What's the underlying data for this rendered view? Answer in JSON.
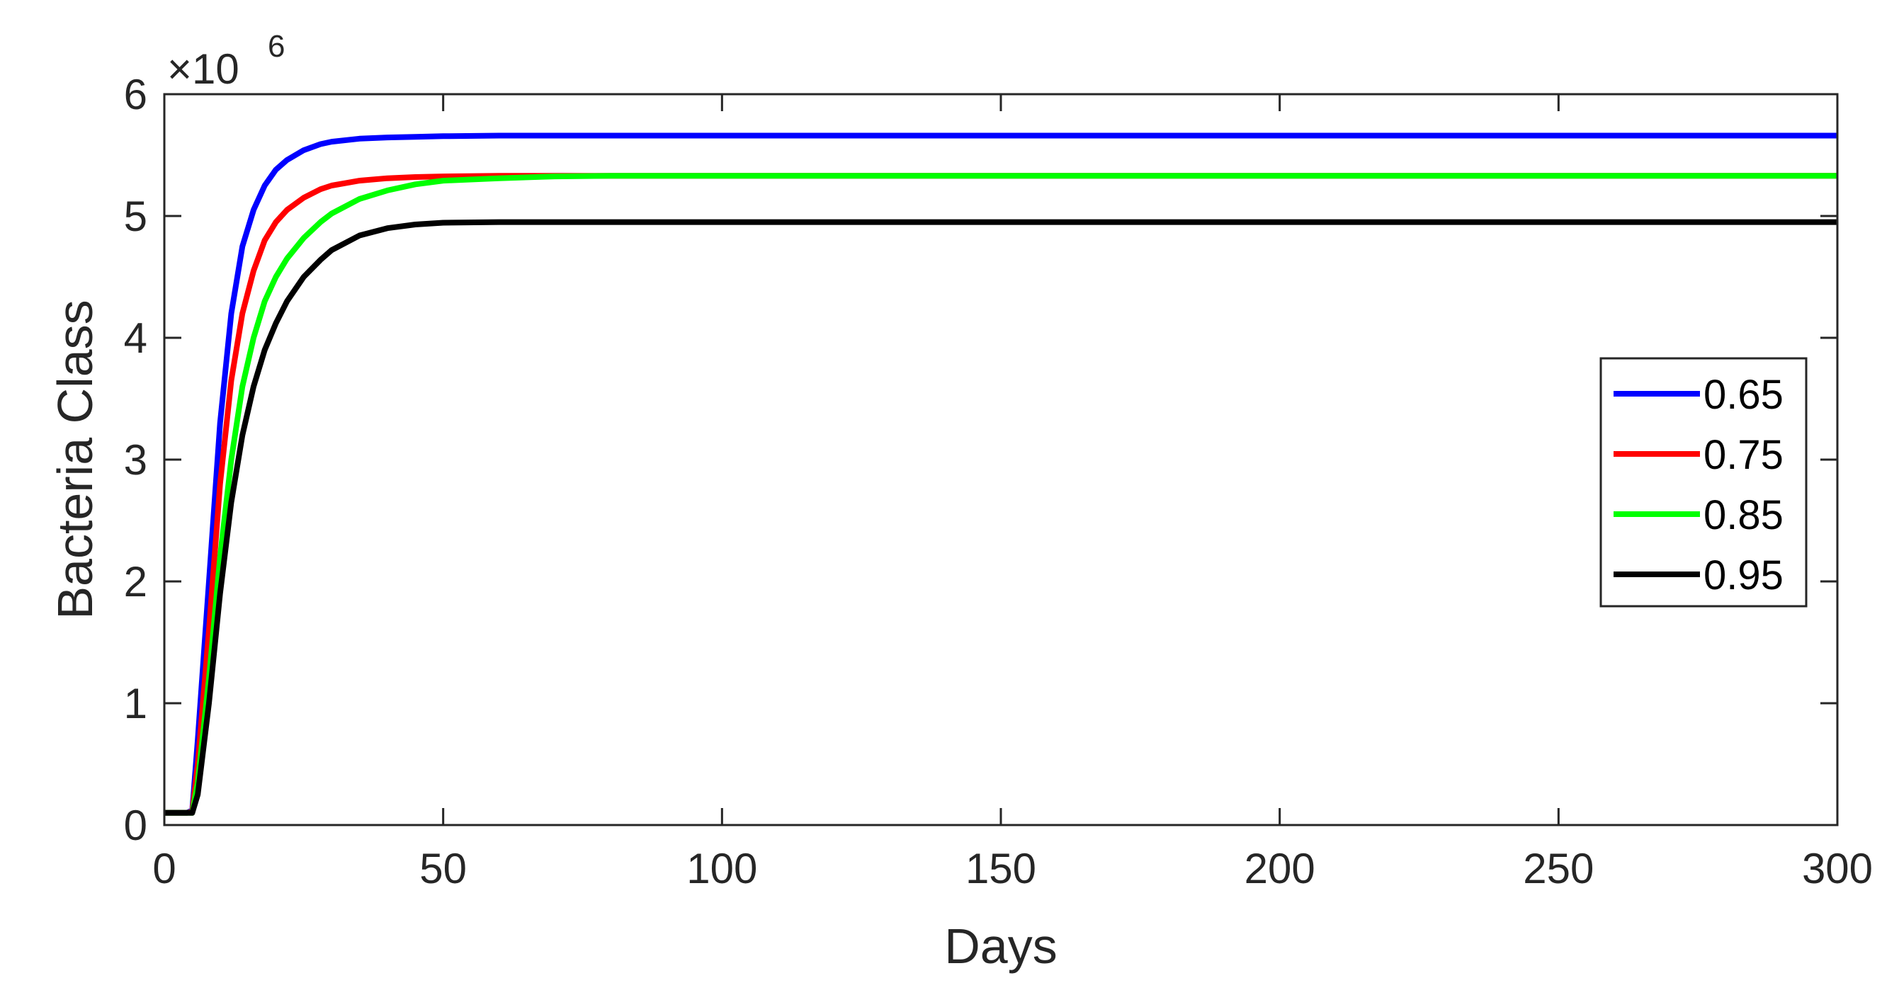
{
  "chart_data": {
    "type": "line",
    "title": "",
    "xlabel": "Days",
    "ylabel": "Bacteria Class",
    "y_multiplier_base": "×10",
    "y_multiplier_exponent": "6",
    "xlim": [
      0,
      300
    ],
    "ylim": [
      0,
      6
    ],
    "x_ticks": [
      "0",
      "50",
      "100",
      "150",
      "200",
      "250",
      "300"
    ],
    "y_ticks": [
      "0",
      "1",
      "2",
      "3",
      "4",
      "5",
      "6"
    ],
    "grid": false,
    "legend_position": "right",
    "x": [
      0,
      4,
      5,
      6,
      8,
      10,
      12,
      14,
      16,
      18,
      20,
      22,
      25,
      28,
      30,
      35,
      40,
      45,
      50,
      60,
      70,
      80,
      100,
      150,
      200,
      250,
      300
    ],
    "series": [
      {
        "name": "0.65",
        "color": "#0000ff",
        "values": [
          0.1,
          0.1,
          0.12,
          0.7,
          2.0,
          3.3,
          4.2,
          4.75,
          5.05,
          5.25,
          5.38,
          5.46,
          5.54,
          5.59,
          5.61,
          5.635,
          5.645,
          5.65,
          5.655,
          5.66,
          5.66,
          5.66,
          5.66,
          5.66,
          5.66,
          5.66,
          5.66
        ]
      },
      {
        "name": "0.75",
        "color": "#ff0000",
        "values": [
          0.1,
          0.1,
          0.11,
          0.5,
          1.6,
          2.8,
          3.65,
          4.2,
          4.55,
          4.8,
          4.95,
          5.05,
          5.15,
          5.22,
          5.25,
          5.29,
          5.31,
          5.32,
          5.325,
          5.33,
          5.33,
          5.33,
          5.33,
          5.33,
          5.33,
          5.33,
          5.33
        ]
      },
      {
        "name": "0.85",
        "color": "#00ff00",
        "values": [
          0.1,
          0.1,
          0.1,
          0.35,
          1.2,
          2.2,
          3.0,
          3.6,
          4.0,
          4.3,
          4.5,
          4.65,
          4.82,
          4.95,
          5.02,
          5.14,
          5.21,
          5.26,
          5.29,
          5.31,
          5.325,
          5.33,
          5.33,
          5.33,
          5.33,
          5.33,
          5.33
        ]
      },
      {
        "name": "0.95",
        "color": "#000000",
        "values": [
          0.1,
          0.1,
          0.1,
          0.25,
          1.0,
          1.9,
          2.65,
          3.2,
          3.6,
          3.9,
          4.12,
          4.3,
          4.5,
          4.64,
          4.72,
          4.84,
          4.9,
          4.93,
          4.945,
          4.95,
          4.95,
          4.95,
          4.95,
          4.95,
          4.95,
          4.95,
          4.95
        ]
      }
    ]
  }
}
